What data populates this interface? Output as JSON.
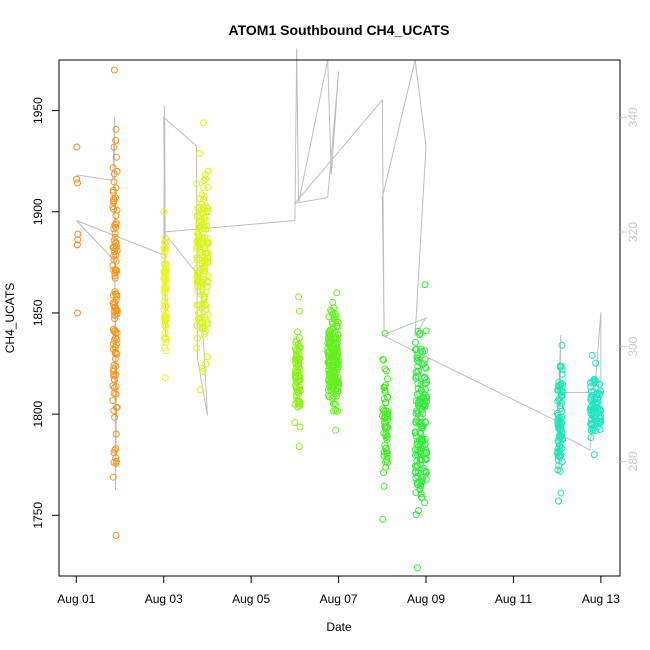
{
  "chart_data": {
    "type": "scatter",
    "title": "ATOM1 Southbound CH4_UCATS",
    "xlabel": "Date",
    "ylabel": "CH4_UCATS",
    "x_is_date": true,
    "xlim": [
      "2016-07-31T14:30",
      "2016-08-13T10:30"
    ],
    "ylim": [
      1720,
      1975
    ],
    "y2lim": [
      260,
      350
    ],
    "x_ticks": [
      {
        "date": "2016-08-01T00:00",
        "label": "Aug 01"
      },
      {
        "date": "2016-08-03T00:00",
        "label": "Aug 03"
      },
      {
        "date": "2016-08-05T00:00",
        "label": "Aug 05"
      },
      {
        "date": "2016-08-07T00:00",
        "label": "Aug 07"
      },
      {
        "date": "2016-08-09T00:00",
        "label": "Aug 09"
      },
      {
        "date": "2016-08-11T00:00",
        "label": "Aug 11"
      },
      {
        "date": "2016-08-13T00:00",
        "label": "Aug 13"
      }
    ],
    "y_ticks": [
      {
        "value": 1750,
        "label": "1750"
      },
      {
        "value": 1800,
        "label": "1800"
      },
      {
        "value": 1850,
        "label": "1850"
      },
      {
        "value": 1900,
        "label": "1900"
      },
      {
        "value": 1950,
        "label": "1950"
      }
    ],
    "y2_ticks": [
      {
        "value": 280,
        "label": "280"
      },
      {
        "value": 300,
        "label": "300"
      },
      {
        "value": 320,
        "label": "320"
      },
      {
        "value": 340,
        "label": "340"
      }
    ],
    "y2_tick_color": "#c8c8c8",
    "secondary_line_color": "#bebebe",
    "grid": false,
    "flights": [
      {
        "start": "2016-08-01T00:00",
        "end": "2016-08-01T01:00",
        "color": "#f08c28",
        "n": 7,
        "range": [
          1850,
          1932
        ],
        "gap_low": 0,
        "dense": false
      },
      {
        "start": "2016-08-01T20:00",
        "end": "2016-08-01T22:30",
        "color": "#f5961e",
        "n": 120,
        "range": [
          1740,
          1970
        ],
        "gap_low": 0,
        "dense": true
      },
      {
        "start": "2016-08-03T00:00",
        "end": "2016-08-03T01:30",
        "color": "#e9f51e",
        "n": 60,
        "range": [
          1818,
          1900
        ],
        "gap_low": 0,
        "dense": true
      },
      {
        "start": "2016-08-03T18:00",
        "end": "2016-08-04T00:30",
        "color": "#d8f51a",
        "n": 160,
        "range": [
          1812,
          1944
        ],
        "gap_low": 0,
        "dense": true
      },
      {
        "start": "2016-08-06T00:00",
        "end": "2016-08-06T03:00",
        "color": "#8cf01e",
        "n": 80,
        "range": [
          1784,
          1858
        ],
        "gap_low": 0,
        "dense": true
      },
      {
        "start": "2016-08-06T18:00",
        "end": "2016-08-07T00:00",
        "color": "#64f01e",
        "n": 180,
        "range": [
          1792,
          1860
        ],
        "gap_low": 0,
        "dense": true
      },
      {
        "start": "2016-08-08T00:00",
        "end": "2016-08-08T03:00",
        "color": "#46eb28",
        "n": 60,
        "range": [
          1748,
          1840
        ],
        "gap_low": 0,
        "dense": true
      },
      {
        "start": "2016-08-08T18:00",
        "end": "2016-08-09T00:30",
        "color": "#32eb3c",
        "n": 160,
        "range": [
          1724,
          1864
        ],
        "gap_low": 0,
        "dense": true
      },
      {
        "start": "2016-08-12T00:00",
        "end": "2016-08-12T03:00",
        "color": "#1ee6b4",
        "n": 80,
        "range": [
          1757,
          1834
        ],
        "gap_low": 0,
        "dense": true
      },
      {
        "start": "2016-08-12T18:00",
        "end": "2016-08-13T00:00",
        "color": "#1ee6c3",
        "n": 80,
        "range": [
          1780,
          1829
        ],
        "gap_low": 0,
        "dense": true
      }
    ],
    "secondary_line": [
      [
        "2016-08-01T00:00",
        330
      ],
      [
        "2016-08-01T20:00",
        329
      ],
      [
        "2016-08-01T21:00",
        340
      ],
      [
        "2016-08-01T21:30",
        275
      ],
      [
        "2016-08-01T22:00",
        290
      ],
      [
        "2016-08-01T21:00",
        315
      ],
      [
        "2016-08-01T00:00",
        322
      ],
      [
        "2016-08-03T00:00",
        316
      ],
      [
        "2016-08-03T00:30",
        342
      ],
      [
        "2016-08-03T01:00",
        302
      ],
      [
        "2016-08-03T00:00",
        340
      ],
      [
        "2016-08-03T18:00",
        335
      ],
      [
        "2016-08-03T18:30",
        298
      ],
      [
        "2016-08-04T00:00",
        288
      ],
      [
        "2016-08-03T20:00",
        312
      ],
      [
        "2016-08-03T00:00",
        320
      ],
      [
        "2016-08-06T00:00",
        322
      ],
      [
        "2016-08-06T01:00",
        352
      ],
      [
        "2016-08-06T02:00",
        325
      ],
      [
        "2016-08-06T18:00",
        350
      ],
      [
        "2016-08-06T20:00",
        330
      ],
      [
        "2016-08-07T00:00",
        348
      ],
      [
        "2016-08-06T18:00",
        326
      ],
      [
        "2016-08-06T00:00",
        325
      ],
      [
        "2016-08-08T00:00",
        343
      ],
      [
        "2016-08-08T01:00",
        303
      ],
      [
        "2016-08-08T00:00",
        326
      ],
      [
        "2016-08-08T18:00",
        350
      ],
      [
        "2016-08-09T00:00",
        335
      ],
      [
        "2016-08-08T18:00",
        302
      ],
      [
        "2016-08-09T00:00",
        305
      ],
      [
        "2016-08-08T00:00",
        302
      ],
      [
        "2016-08-12T00:00",
        287
      ],
      [
        "2016-08-12T01:00",
        278
      ],
      [
        "2016-08-12T02:00",
        302
      ],
      [
        "2016-08-12T00:00",
        285
      ],
      [
        "2016-08-12T18:00",
        282
      ],
      [
        "2016-08-13T00:00",
        306
      ],
      [
        "2016-08-13T00:00",
        292
      ],
      [
        "2016-08-12T00:00",
        292
      ]
    ]
  }
}
